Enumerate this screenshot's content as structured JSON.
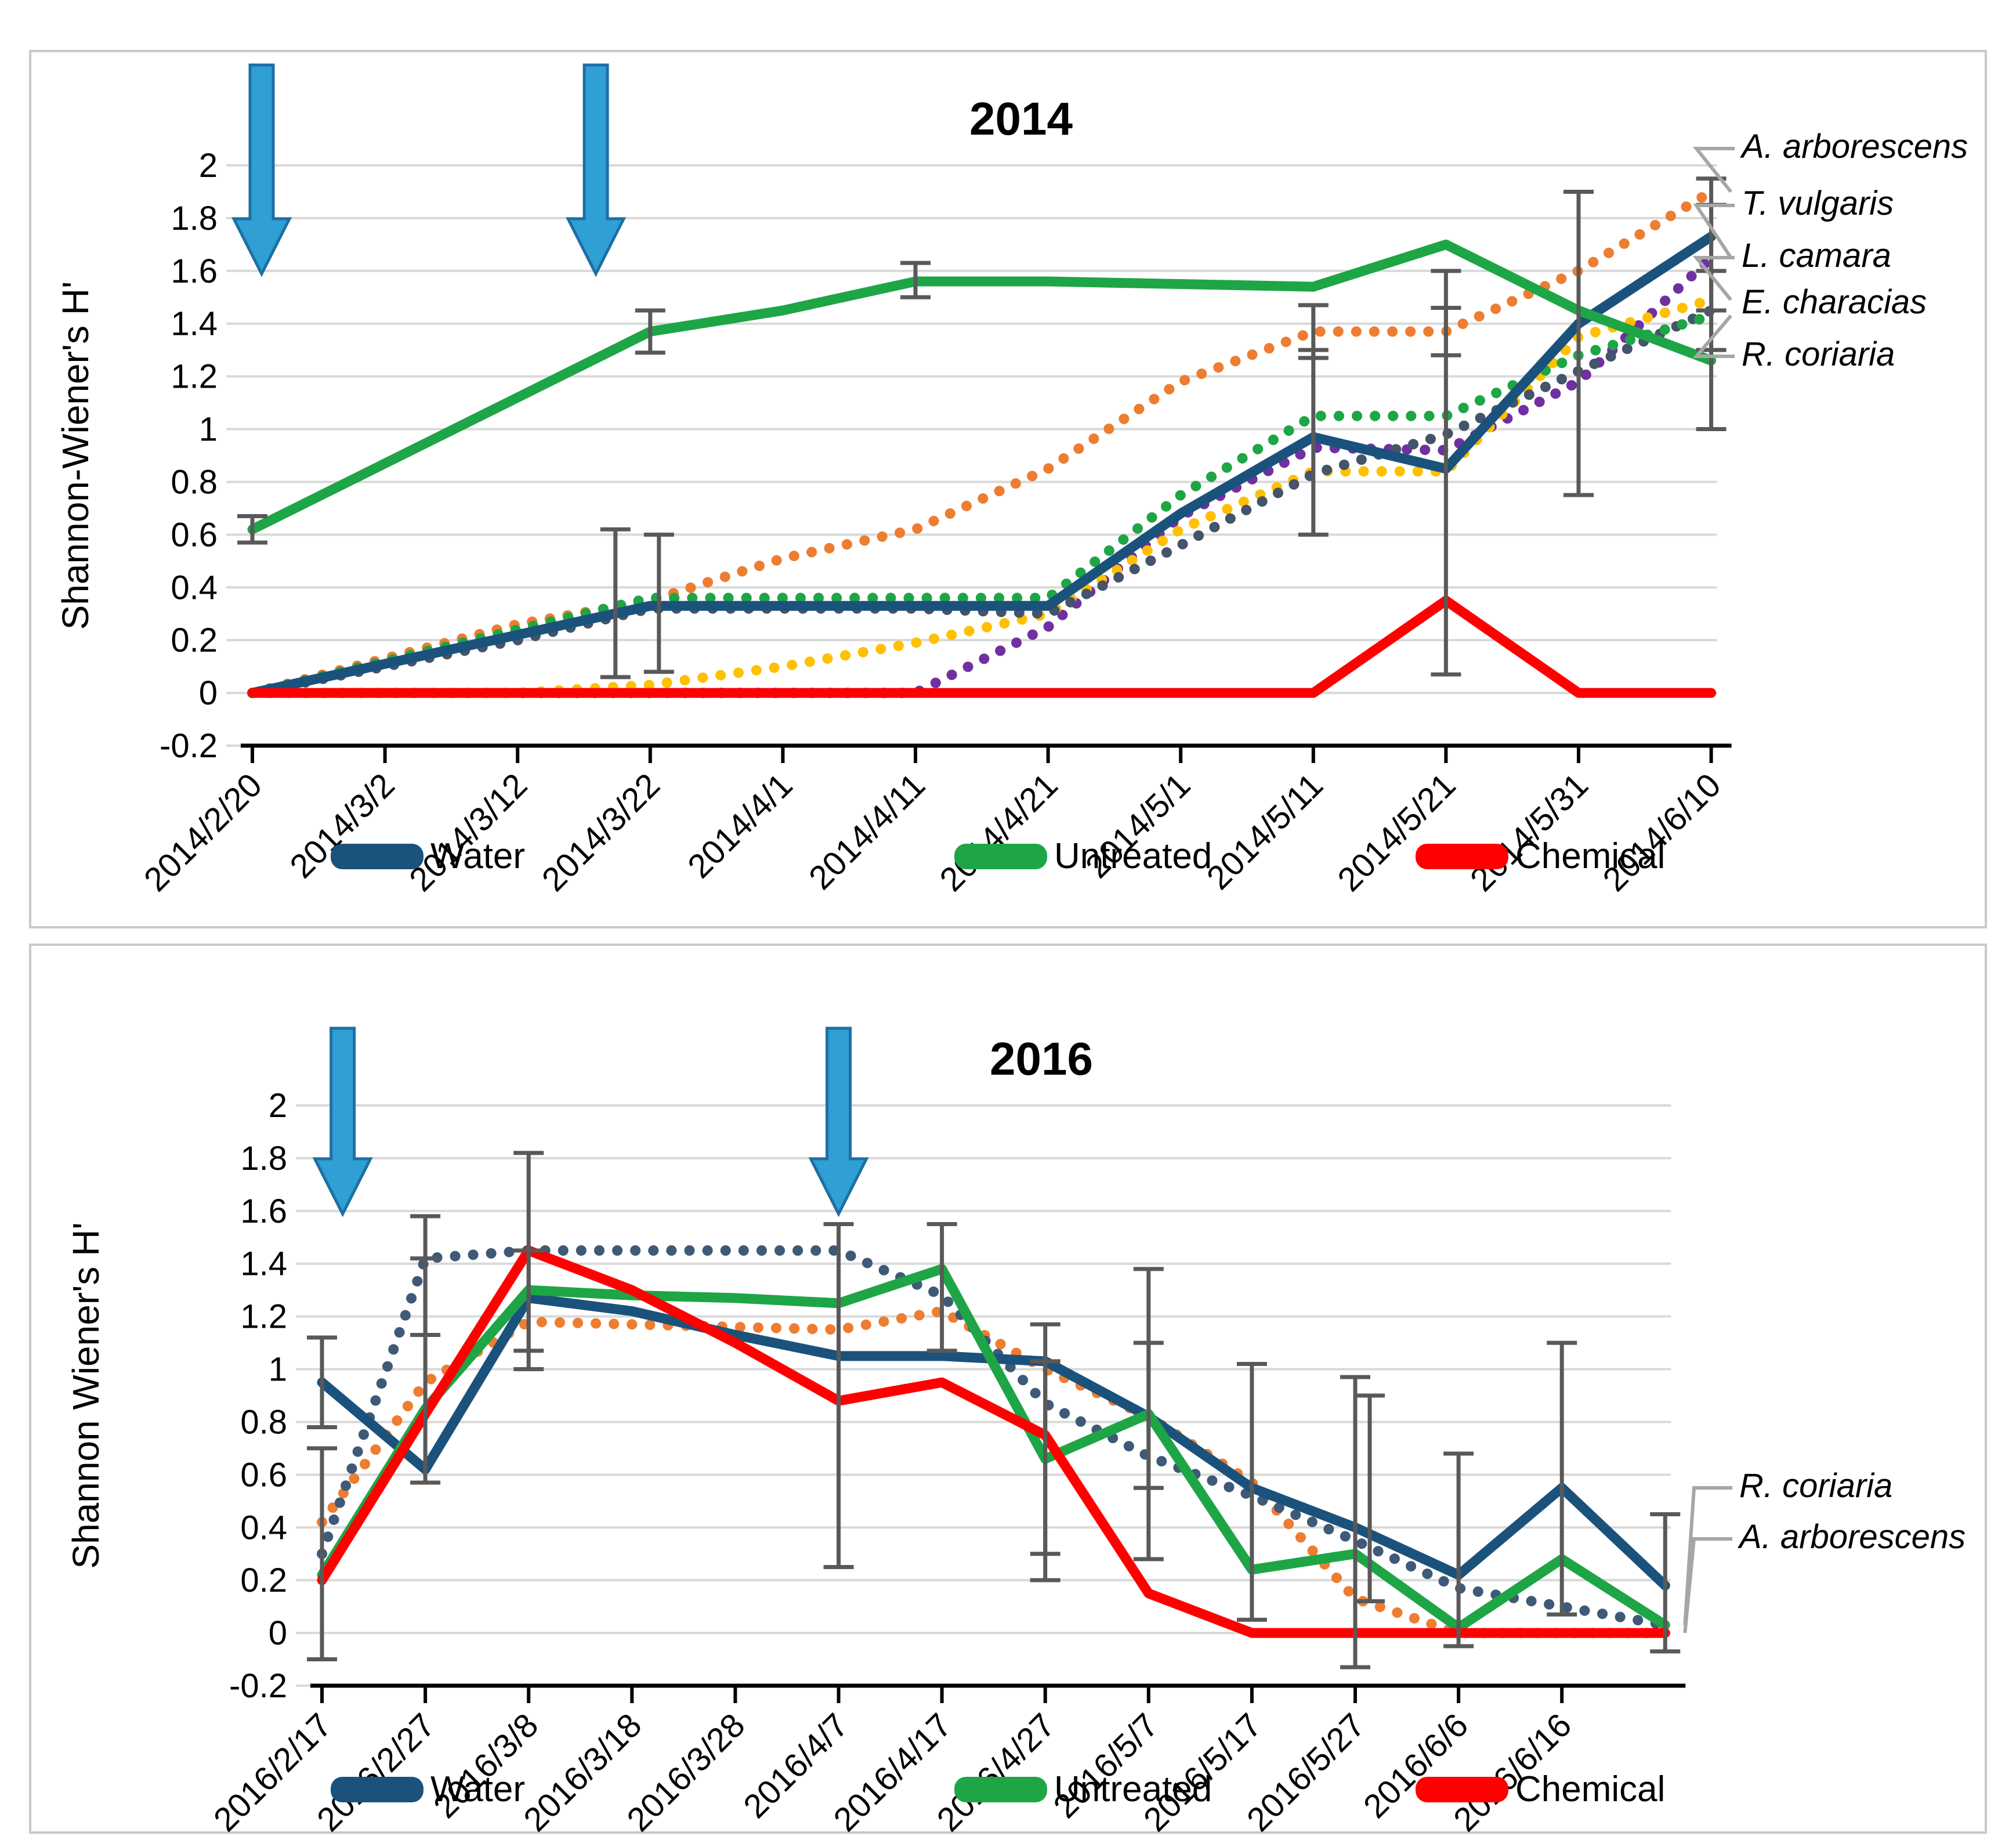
{
  "figure": {
    "background": "#FFFFFF",
    "panel_border_color": "#C8C8C8",
    "grid_color": "#D9D9D9",
    "axis_color": "#000000",
    "error_bar_color": "#595959",
    "arrow_fill": "#2F9FD4",
    "arrow_stroke": "#1D6FA3",
    "leader_color": "#A6A6A6",
    "text_color": "#000000"
  },
  "chart_data": [
    {
      "type": "line",
      "title": "2014",
      "ylabel": "Shannon-Wiener's H'",
      "xlabel": "",
      "ylim": [
        -0.2,
        2
      ],
      "grid": true,
      "legend_position": "bottom",
      "yticks": [
        [
          "2",
          2
        ],
        [
          "1.8",
          1.8
        ],
        [
          "1.6",
          1.6
        ],
        [
          "1.4",
          1.4
        ],
        [
          "1.2",
          1.2
        ],
        [
          "1",
          1
        ],
        [
          "0.8",
          0.8
        ],
        [
          "0.6",
          0.6
        ],
        [
          "0.4",
          0.4
        ],
        [
          "0.2",
          0.2
        ],
        [
          "0",
          0
        ],
        [
          "-0.2",
          -0.2
        ]
      ],
      "categories": [
        "2014/2/20",
        "2014/3/2",
        "2014/3/12",
        "2014/3/22",
        "2014/4/1",
        "2014/4/11",
        "2014/4/21",
        "2014/5/1",
        "2014/5/11",
        "2014/5/21",
        "2014/5/31",
        "2014/6/10"
      ],
      "series": [
        {
          "name": "A. arborescens",
          "color": "#ED7D31",
          "style": "dotted",
          "values": [
            0,
            0.13,
            0.26,
            0.35,
            0.51,
            0.62,
            0.85,
            1.18,
            1.37,
            1.37,
            1.6,
            1.9
          ]
        },
        {
          "name": "T. vulgaris",
          "color": "#7030A0",
          "style": "dotted",
          "values": [
            0,
            0,
            0,
            0,
            0,
            0,
            0.25,
            0.67,
            0.93,
            0.92,
            1.18,
            1.65
          ]
        },
        {
          "name": "L. camara",
          "color": "#FFC000",
          "style": "dotted",
          "values": [
            0,
            0,
            0,
            0.03,
            0.1,
            0.19,
            0.3,
            0.62,
            0.84,
            0.84,
            1.35,
            1.49
          ]
        },
        {
          "name": "E. characias",
          "color": "#44546A",
          "style": "dotted",
          "values": [
            0,
            0.1,
            0.2,
            0.32,
            0.32,
            0.32,
            0.3,
            0.56,
            0.83,
            0.98,
            1.22,
            1.45
          ]
        },
        {
          "name": "R. coriaria",
          "color": "#1EA546",
          "style": "dotted",
          "values": [
            0,
            0.12,
            0.24,
            0.36,
            0.36,
            0.36,
            0.36,
            0.75,
            1.05,
            1.05,
            1.28,
            1.43
          ]
        },
        {
          "name": "Water",
          "color": "#1B527C",
          "style": "solid",
          "values": [
            0,
            0.11,
            0.22,
            0.33,
            0.33,
            0.33,
            0.33,
            0.68,
            0.97,
            0.85,
            1.4,
            1.73
          ]
        },
        {
          "name": "Untreated",
          "color": "#1EA546",
          "style": "solid",
          "values": [
            0.62,
            0.87,
            1.12,
            1.37,
            1.45,
            1.56,
            1.56,
            1.55,
            1.54,
            1.7,
            1.45,
            1.26
          ]
        },
        {
          "name": "Chemical",
          "color": "#FF0000",
          "style": "solid",
          "values": [
            0,
            0,
            0,
            0,
            0,
            0,
            0,
            0,
            0,
            0.35,
            0,
            0
          ]
        }
      ],
      "legend": [
        "Water",
        "Untreated",
        "Chemical"
      ],
      "right_labels": [
        {
          "text": "A. arborescens",
          "series": "A. arborescens"
        },
        {
          "text": "T. vulgaris",
          "series": "T. vulgaris"
        },
        {
          "text": "L. camara",
          "series": "L. camara"
        },
        {
          "text": "E. characias",
          "series": "E. characias"
        },
        {
          "text": "R. coriaria",
          "series": "R. coriaria"
        }
      ],
      "arrows": [
        {
          "x_index": 0.07
        },
        {
          "x_index": 2.59
        }
      ],
      "error_bars": [
        {
          "series": "Untreated",
          "index": 0,
          "lo": 0.57,
          "hi": 0.67,
          "dx": 0
        },
        {
          "series": "Untreated",
          "index": 3,
          "lo": 1.29,
          "hi": 1.45,
          "dx": 0
        },
        {
          "series": "Water",
          "index": 3,
          "lo": 0.06,
          "hi": 0.62,
          "dx": -60
        },
        {
          "series": "R. coriaria",
          "index": 3,
          "lo": 0.08,
          "hi": 0.6,
          "dx": 15
        },
        {
          "series": "Untreated",
          "index": 5,
          "lo": 1.5,
          "hi": 1.63,
          "dx": 0
        },
        {
          "series": "Water",
          "index": 8,
          "lo": 0.6,
          "hi": 1.3,
          "dx": 0
        },
        {
          "series": "A. arborescens",
          "index": 8,
          "lo": 1.27,
          "hi": 1.47,
          "dx": 0
        },
        {
          "series": "Water",
          "index": 9,
          "lo": 0.07,
          "hi": 1.6,
          "dx": 0
        },
        {
          "series": "A. arborescens",
          "index": 9,
          "lo": 1.28,
          "hi": 1.46,
          "dx": 0
        },
        {
          "series": "Water",
          "index": 10,
          "lo": 0.75,
          "hi": 1.9,
          "dx": 0
        },
        {
          "series": "Water",
          "index": 11,
          "lo": 1.0,
          "hi": 1.95,
          "dx": 0
        },
        {
          "series": "E. characias",
          "index": 11,
          "lo": 1.3,
          "hi": 1.6,
          "dx": 0
        },
        {
          "series": "T. vulgaris",
          "index": 11,
          "lo": 1.45,
          "hi": 1.85,
          "dx": 0
        }
      ]
    },
    {
      "type": "line",
      "title": "2016",
      "ylabel": "Shannon Wiener's H'",
      "xlabel": "",
      "ylim": [
        -0.2,
        2
      ],
      "grid": true,
      "legend_position": "bottom",
      "yticks": [
        [
          "2",
          2
        ],
        [
          "1.8",
          1.8
        ],
        [
          "1.6",
          1.6
        ],
        [
          "1.4",
          1.4
        ],
        [
          "1.2",
          1.2
        ],
        [
          "1",
          1
        ],
        [
          "0.8",
          0.8
        ],
        [
          "0.6",
          0.6
        ],
        [
          "0.4",
          0.4
        ],
        [
          "0.2",
          0.2
        ],
        [
          "0",
          0
        ],
        [
          "-0.2",
          -0.2
        ]
      ],
      "categories": [
        "2016/2/17",
        "2016/2/27",
        "2016/3/8",
        "2016/3/18",
        "2016/3/28",
        "2016/4/7",
        "2016/4/17",
        "2016/4/27",
        "2016/5/7",
        "2016/5/17",
        "2016/5/27",
        "2016/6/6",
        "2016/6/16",
        ""
      ],
      "series": [
        {
          "name": "A. arborescens",
          "color": "#ED7D31",
          "style": "dotted",
          "values": [
            0.42,
            0.95,
            1.18,
            1.17,
            1.16,
            1.15,
            1.22,
            1.0,
            0.82,
            0.57,
            0.13,
            0,
            0,
            0
          ]
        },
        {
          "name": "R. coriaria",
          "color": "#3E5A78",
          "style": "dotted",
          "values": [
            0.3,
            1.42,
            1.45,
            1.45,
            1.45,
            1.45,
            1.28,
            0.87,
            0.67,
            0.52,
            0.35,
            0.17,
            0.1,
            0.03
          ]
        },
        {
          "name": "Water",
          "color": "#1B527C",
          "style": "solid",
          "values": [
            0.95,
            0.62,
            1.27,
            1.22,
            1.13,
            1.05,
            1.05,
            1.03,
            0.82,
            0.55,
            0.4,
            0.22,
            0.55,
            0.18
          ]
        },
        {
          "name": "Untreated",
          "color": "#1EA546",
          "style": "solid",
          "values": [
            0.22,
            0.85,
            1.3,
            1.28,
            1.27,
            1.25,
            1.38,
            0.66,
            0.83,
            0.24,
            0.3,
            0.02,
            0.28,
            0.03
          ]
        },
        {
          "name": "Chemical",
          "color": "#FF0000",
          "style": "solid",
          "values": [
            0.2,
            0.83,
            1.45,
            1.3,
            1.1,
            0.88,
            0.95,
            0.75,
            0.15,
            0,
            0,
            0,
            0,
            0
          ]
        }
      ],
      "legend": [
        "Water",
        "Untreated",
        "Chemical"
      ],
      "right_labels": [
        {
          "text": "R. coriaria",
          "series": "R. coriaria"
        },
        {
          "text": "A. arborescens",
          "series": "A. arborescens"
        }
      ],
      "arrows": [
        {
          "x_index": 0.2
        },
        {
          "x_index": 5.0
        }
      ],
      "error_bars": [
        {
          "series": "Water",
          "index": 0,
          "lo": 0.78,
          "hi": 1.12,
          "dx": 0
        },
        {
          "series": "R. coriaria",
          "index": 0,
          "lo": -0.1,
          "hi": 0.7,
          "dx": 0
        },
        {
          "series": "Water",
          "index": 1,
          "lo": 0.57,
          "hi": 1.58,
          "dx": 0
        },
        {
          "series": "R. coriaria",
          "index": 1,
          "lo": 1.13,
          "hi": 1.42,
          "dx": 0
        },
        {
          "series": "Chemical",
          "index": 2,
          "lo": 1.0,
          "hi": 1.82,
          "dx": 0
        },
        {
          "series": "Untreated",
          "index": 2,
          "lo": 1.07,
          "hi": 1.45,
          "dx": 0
        },
        {
          "series": "Water",
          "index": 5,
          "lo": 0.25,
          "hi": 1.55,
          "dx": 0
        },
        {
          "series": "Untreated",
          "index": 6,
          "lo": 1.07,
          "hi": 1.55,
          "dx": 0
        },
        {
          "series": "Water",
          "index": 7,
          "lo": 0.3,
          "hi": 1.17,
          "dx": 0
        },
        {
          "series": "Untreated",
          "index": 7,
          "lo": 0.2,
          "hi": 1.03,
          "dx": 0
        },
        {
          "series": "Water",
          "index": 8,
          "lo": 0.28,
          "hi": 1.38,
          "dx": 0
        },
        {
          "series": "Untreated",
          "index": 8,
          "lo": 0.55,
          "hi": 1.1,
          "dx": 0
        },
        {
          "series": "Water",
          "index": 9,
          "lo": 0.05,
          "hi": 1.02,
          "dx": 0
        },
        {
          "series": "Untreated",
          "index": 10,
          "lo": -0.13,
          "hi": 0.97,
          "dx": 0
        },
        {
          "series": "Water",
          "index": 10,
          "lo": 0.12,
          "hi": 0.9,
          "dx": 25
        },
        {
          "series": "Untreated",
          "index": 11,
          "lo": -0.05,
          "hi": 0.68,
          "dx": 0
        },
        {
          "series": "Water",
          "index": 12,
          "lo": 0.07,
          "hi": 1.1,
          "dx": 0
        },
        {
          "series": "Untreated",
          "index": 13,
          "lo": -0.07,
          "hi": 0.45,
          "dx": 0
        }
      ]
    }
  ]
}
